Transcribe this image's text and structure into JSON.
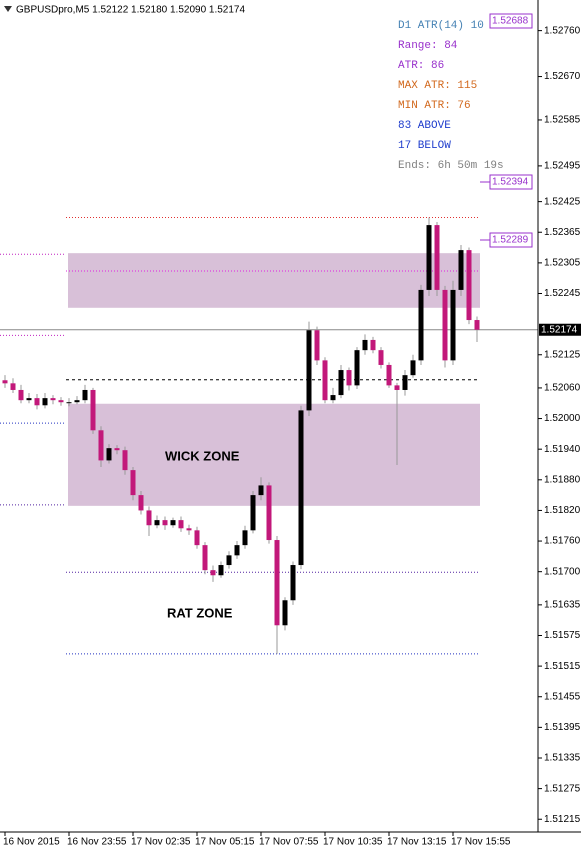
{
  "chart_data": {
    "type": "candlestick",
    "title": "GBPUSDpro,M5  1.52122 1.52180 1.52090 1.52174",
    "categories": [
      "16 Nov 2015",
      null,
      null,
      null,
      null,
      null,
      null,
      null,
      "16 Nov 23:55",
      null,
      null,
      null,
      null,
      null,
      null,
      null,
      "17 Nov 02:35",
      null,
      null,
      null,
      null,
      null,
      null,
      null,
      "17 Nov 05:15",
      null,
      null,
      null,
      null,
      null,
      null,
      null,
      "17 Nov 07:55",
      null,
      null,
      null,
      null,
      null,
      null,
      null,
      "17 Nov 10:35",
      null,
      null,
      null,
      null,
      null,
      null,
      null,
      "17 Nov 13:15",
      null,
      null,
      null,
      null,
      null,
      null,
      null,
      "17 Nov 15:55",
      null,
      null,
      null
    ],
    "open": [
      1.52075,
      1.52069,
      1.52056,
      1.52036,
      1.5204,
      1.52026,
      1.5204,
      1.52036,
      1.52032,
      1.52032,
      1.52036,
      1.52056,
      1.51977,
      1.51918,
      1.51942,
      1.51938,
      1.51899,
      1.5185,
      1.5182,
      1.51791,
      1.51801,
      1.51791,
      1.51801,
      1.51785,
      1.51781,
      1.51752,
      1.51703,
      1.51693,
      1.51713,
      1.51732,
      1.51752,
      1.51781,
      1.5185,
      1.51869,
      1.51762,
      1.51595,
      1.51644,
      1.51713,
      1.52016,
      1.52173,
      1.52114,
      1.52036,
      1.52046,
      1.52095,
      1.52065,
      1.52134,
      1.52154,
      1.52134,
      1.52105,
      1.52065,
      1.52056,
      1.52085,
      1.52114,
      1.52252,
      1.52379,
      1.52252,
      1.52114,
      1.52252,
      1.5233,
      1.52193
    ],
    "high": [
      1.52085,
      1.52079,
      1.52066,
      1.5205,
      1.52048,
      1.5205,
      1.52046,
      1.52042,
      1.5204,
      1.52044,
      1.52066,
      1.5206,
      1.51985,
      1.5195,
      1.51948,
      1.51945,
      1.51905,
      1.51858,
      1.51828,
      1.5181,
      1.51808,
      1.51806,
      1.51808,
      1.51792,
      1.51788,
      1.51758,
      1.51712,
      1.5172,
      1.5174,
      1.5176,
      1.5179,
      1.51858,
      1.51885,
      1.51875,
      1.5177,
      1.5165,
      1.5172,
      1.52025,
      1.5219,
      1.5218,
      1.5212,
      1.5206,
      1.52105,
      1.521,
      1.5214,
      1.52165,
      1.5216,
      1.5214,
      1.5211,
      1.5207,
      1.52095,
      1.52125,
      1.52262,
      1.52394,
      1.52385,
      1.5226,
      1.5227,
      1.5234,
      1.52335,
      1.522
    ],
    "low": [
      1.5206,
      1.5205,
      1.5203,
      1.5203,
      1.52018,
      1.5202,
      1.52028,
      1.52025,
      1.52024,
      1.52028,
      1.5203,
      1.5197,
      1.51905,
      1.51912,
      1.5193,
      1.5189,
      1.5184,
      1.51812,
      1.5177,
      1.51785,
      1.51782,
      1.51786,
      1.51778,
      1.51772,
      1.51745,
      1.51695,
      1.5168,
      1.51688,
      1.51706,
      1.51725,
      1.51745,
      1.51775,
      1.5184,
      1.51755,
      1.51539,
      1.51585,
      1.51635,
      1.51705,
      1.52005,
      1.52105,
      1.5203,
      1.5203,
      1.5204,
      1.52055,
      1.52058,
      1.52125,
      1.52128,
      1.52098,
      1.5206,
      1.51909,
      1.52045,
      1.5208,
      1.52105,
      1.5224,
      1.5224,
      1.521,
      1.52105,
      1.5224,
      1.52185,
      1.5215
    ],
    "close": [
      1.52069,
      1.52056,
      1.52036,
      1.5204,
      1.52026,
      1.5204,
      1.52036,
      1.52032,
      1.52032,
      1.52036,
      1.52056,
      1.51977,
      1.51918,
      1.51942,
      1.51938,
      1.51899,
      1.5185,
      1.5182,
      1.51791,
      1.51801,
      1.51791,
      1.51801,
      1.51785,
      1.51781,
      1.51752,
      1.51703,
      1.51693,
      1.51713,
      1.51732,
      1.51752,
      1.51781,
      1.5185,
      1.51869,
      1.51762,
      1.51595,
      1.51644,
      1.51713,
      1.52016,
      1.52173,
      1.52114,
      1.52036,
      1.52046,
      1.52095,
      1.52065,
      1.52134,
      1.52154,
      1.52134,
      1.52105,
      1.52065,
      1.52056,
      1.52085,
      1.52114,
      1.52252,
      1.52379,
      1.52252,
      1.52114,
      1.52252,
      1.5233,
      1.52193,
      1.52174
    ],
    "up_color": "#000000",
    "down_color": "#c2187a",
    "ylim": [
      1.5119,
      1.5282
    ],
    "yticks": [
      {
        "value": 1.5276,
        "label": "1.52760"
      },
      {
        "value": 1.5267,
        "label": "1.52670"
      },
      1.52585,
      1.52495,
      1.52425,
      1.52365,
      1.52305,
      1.52245,
      1.52125,
      {
        "value": 1.5206,
        "label": "1.52060"
      },
      {
        "value": 1.52,
        "label": "1.52000"
      },
      {
        "value": 1.5194,
        "label": "1.51940"
      },
      {
        "value": 1.5188,
        "label": "1.51880"
      },
      {
        "value": 1.5182,
        "label": "1.51820"
      },
      {
        "value": 1.5176,
        "label": "1.51760"
      },
      {
        "value": 1.517,
        "label": "1.51700"
      },
      1.51635,
      1.51575,
      1.51515,
      1.51455,
      1.51395,
      1.51335,
      1.51275,
      1.51215
    ],
    "shaded_zones": [
      [
        1.52217,
        1.52324
      ],
      [
        1.51829,
        1.52029
      ]
    ],
    "zone_color": "#d8c0d8",
    "zone_labels": [
      "WICK ZONE",
      "RAT ZONE"
    ],
    "levels": [
      {
        "value": 1.52394,
        "color": "#e03030",
        "dash": "dotted"
      },
      {
        "value": 1.52289,
        "color": "#e020e0",
        "dash": "dotted"
      },
      {
        "value": 1.52076,
        "color": "#000000",
        "dash": "dashed"
      },
      {
        "value": 1.51699,
        "color": "#5020a0",
        "dash": "dotted"
      },
      {
        "value": 1.51539,
        "color": "#2030c0",
        "dash": "dotted"
      }
    ],
    "left_levels": [
      {
        "value": 1.52322,
        "color": "#c020c0",
        "dash": "dotted"
      },
      {
        "value": 1.52163,
        "color": "#c020c0",
        "dash": "dotted"
      },
      {
        "value": 1.51991,
        "color": "#2030c0",
        "dash": "dotted"
      },
      {
        "value": 1.51831,
        "color": "#5020a0",
        "dash": "dotted"
      }
    ],
    "price_boxes": [
      "1.52688",
      "1.52394",
      "1.52289"
    ],
    "current_price_label": "1.52174",
    "indicator": [
      {
        "text": "D1 ATR(14)  10",
        "color": "#4682b4"
      },
      {
        "text": "Range: 84",
        "color": "#9932cc"
      },
      {
        "text": "ATR: 86",
        "color": "#9932cc"
      },
      {
        "text": "MAX ATR: 115",
        "color": "#d2691e"
      },
      {
        "text": "MIN ATR: 76",
        "color": "#d2691e"
      },
      {
        "text": "83 ABOVE",
        "color": "#1e3ccc"
      },
      {
        "text": "17 BELOW",
        "color": "#1e3ccc"
      },
      {
        "text": "Ends: 6h 50m 19s",
        "color": "#808080"
      }
    ]
  }
}
